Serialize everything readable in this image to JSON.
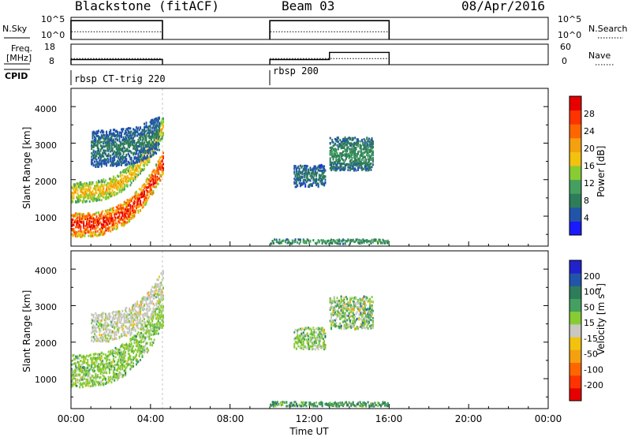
{
  "header": {
    "radar": "Blackstone (fitACF)",
    "beam": "Beam 03",
    "date": "08/Apr/2016"
  },
  "nsky_panel": {
    "left_label": "N.Sky",
    "left_ticks": [
      "10^5",
      "10^0"
    ],
    "right_ticks": [
      "10^5",
      "10^0"
    ],
    "right_label": "N.Search"
  },
  "freq_panel": {
    "left_label_1": "Freq.",
    "left_label_2": "[MHz]",
    "left_ticks": [
      "18",
      "8"
    ],
    "right_ticks": [
      "60",
      "0"
    ],
    "right_label": "Nave"
  },
  "cpid": {
    "label": "CPID",
    "entries": [
      "rbsp CT-trig 220",
      "rbsp 200"
    ]
  },
  "x_axis": {
    "label": "Time UT",
    "ticks": [
      "00:00",
      "04:00",
      "08:00",
      "12:00",
      "16:00",
      "20:00",
      "00:00"
    ]
  },
  "y_axis": {
    "label": "Slant Range [km]",
    "ticks": [
      "1000",
      "2000",
      "3000",
      "4000"
    ]
  },
  "colorbars": {
    "power": {
      "label": "Power [dB]",
      "ticks": [
        "4",
        "8",
        "12",
        "16",
        "20",
        "24",
        "28"
      ],
      "colors": [
        "#1a1aff",
        "#2255aa",
        "#2e7d5a",
        "#44a060",
        "#88cc33",
        "#f2c20e",
        "#f5a010",
        "#ff6600",
        "#ff3300",
        "#e60000"
      ]
    },
    "velocity": {
      "label_main": "Velocity [m s",
      "label_sup": "-1",
      "label_end": "]",
      "ticks": [
        "200",
        "100",
        "50",
        "15",
        "-15",
        "-50",
        "-100",
        "-200"
      ],
      "colors": [
        "#2222cc",
        "#2255aa",
        "#2e7d5a",
        "#44a060",
        "#88cc33",
        "#c8c8c0",
        "#f2c20e",
        "#f5a010",
        "#ff6600",
        "#ff3300",
        "#e60000"
      ]
    }
  },
  "chart_data": [
    {
      "type": "line",
      "panel": "noise",
      "x_unit": "hours UT",
      "series": [
        {
          "name": "N.Sky",
          "segments": [
            [
              0,
              4.6
            ],
            [
              10,
              16
            ]
          ],
          "level": 0.85
        },
        {
          "name": "N.Search",
          "segments": [
            [
              0,
              4.6
            ],
            [
              10,
              16
            ]
          ],
          "level": 0.35
        }
      ],
      "ylim": [
        0,
        1
      ]
    },
    {
      "type": "line",
      "panel": "freq",
      "x_unit": "hours UT",
      "series": [
        {
          "name": "Freq.",
          "segments": [
            [
              0,
              4.6,
              10.5
            ],
            [
              10,
              13,
              10.5
            ],
            [
              13,
              16,
              14
            ]
          ]
        },
        {
          "name": "Nave",
          "segments": [
            [
              0,
              4.6,
              18
            ],
            [
              10,
              16,
              18
            ]
          ]
        }
      ],
      "ylim": [
        8,
        18
      ]
    },
    {
      "type": "heatmap",
      "panel": "power",
      "x_unit": "hours UT",
      "xlim": [
        0,
        24
      ],
      "y_unit": "km",
      "ylim": [
        180,
        4500
      ],
      "z_label": "Power [dB]",
      "zlim": [
        0,
        32
      ],
      "regions": [
        {
          "t": [
            0,
            4.6
          ],
          "r0": 750,
          "dr": 650,
          "p": [
            30,
            12
          ],
          "lift": 1700
        },
        {
          "t": [
            0,
            4.6
          ],
          "r0": 1650,
          "dr": 550,
          "p": [
            20,
            6
          ],
          "lift": 1800
        },
        {
          "t": [
            1,
            4.4
          ],
          "r0": 2850,
          "dr": 1000,
          "p": [
            8,
            3
          ],
          "lift": 400
        },
        {
          "t": [
            10,
            16
          ],
          "r0": 300,
          "dr": 120,
          "p": [
            12,
            4
          ],
          "lift": 0
        },
        {
          "t": [
            11.2,
            12.8
          ],
          "r0": 2100,
          "dr": 600,
          "p": [
            8,
            4
          ],
          "lift": 0
        },
        {
          "t": [
            13,
            15.2
          ],
          "r0": 2700,
          "dr": 900,
          "p": [
            10,
            4
          ],
          "lift": 0
        }
      ]
    },
    {
      "type": "heatmap",
      "panel": "velocity",
      "x_unit": "hours UT",
      "xlim": [
        0,
        24
      ],
      "y_unit": "km",
      "ylim": [
        180,
        4500
      ],
      "z_label": "Velocity [m s^-1]",
      "zlim": [
        -250,
        250
      ],
      "regions": [
        {
          "t": [
            0,
            4.6
          ],
          "r0": 1200,
          "dr": 900,
          "v": [
            0,
            40
          ],
          "lift": 1700
        },
        {
          "t": [
            1,
            4.6
          ],
          "r0": 2400,
          "dr": 800,
          "v": [
            -30,
            40
          ],
          "lift": 1200
        },
        {
          "t": [
            10,
            16
          ],
          "r0": 300,
          "dr": 120,
          "v": [
            40,
            80
          ],
          "lift": 0
        },
        {
          "t": [
            11.2,
            12.8
          ],
          "r0": 2100,
          "dr": 600,
          "v": [
            0,
            60
          ],
          "lift": 0
        },
        {
          "t": [
            13,
            15.2
          ],
          "r0": 2800,
          "dr": 900,
          "v": [
            0,
            80
          ],
          "lift": 0
        }
      ]
    }
  ]
}
